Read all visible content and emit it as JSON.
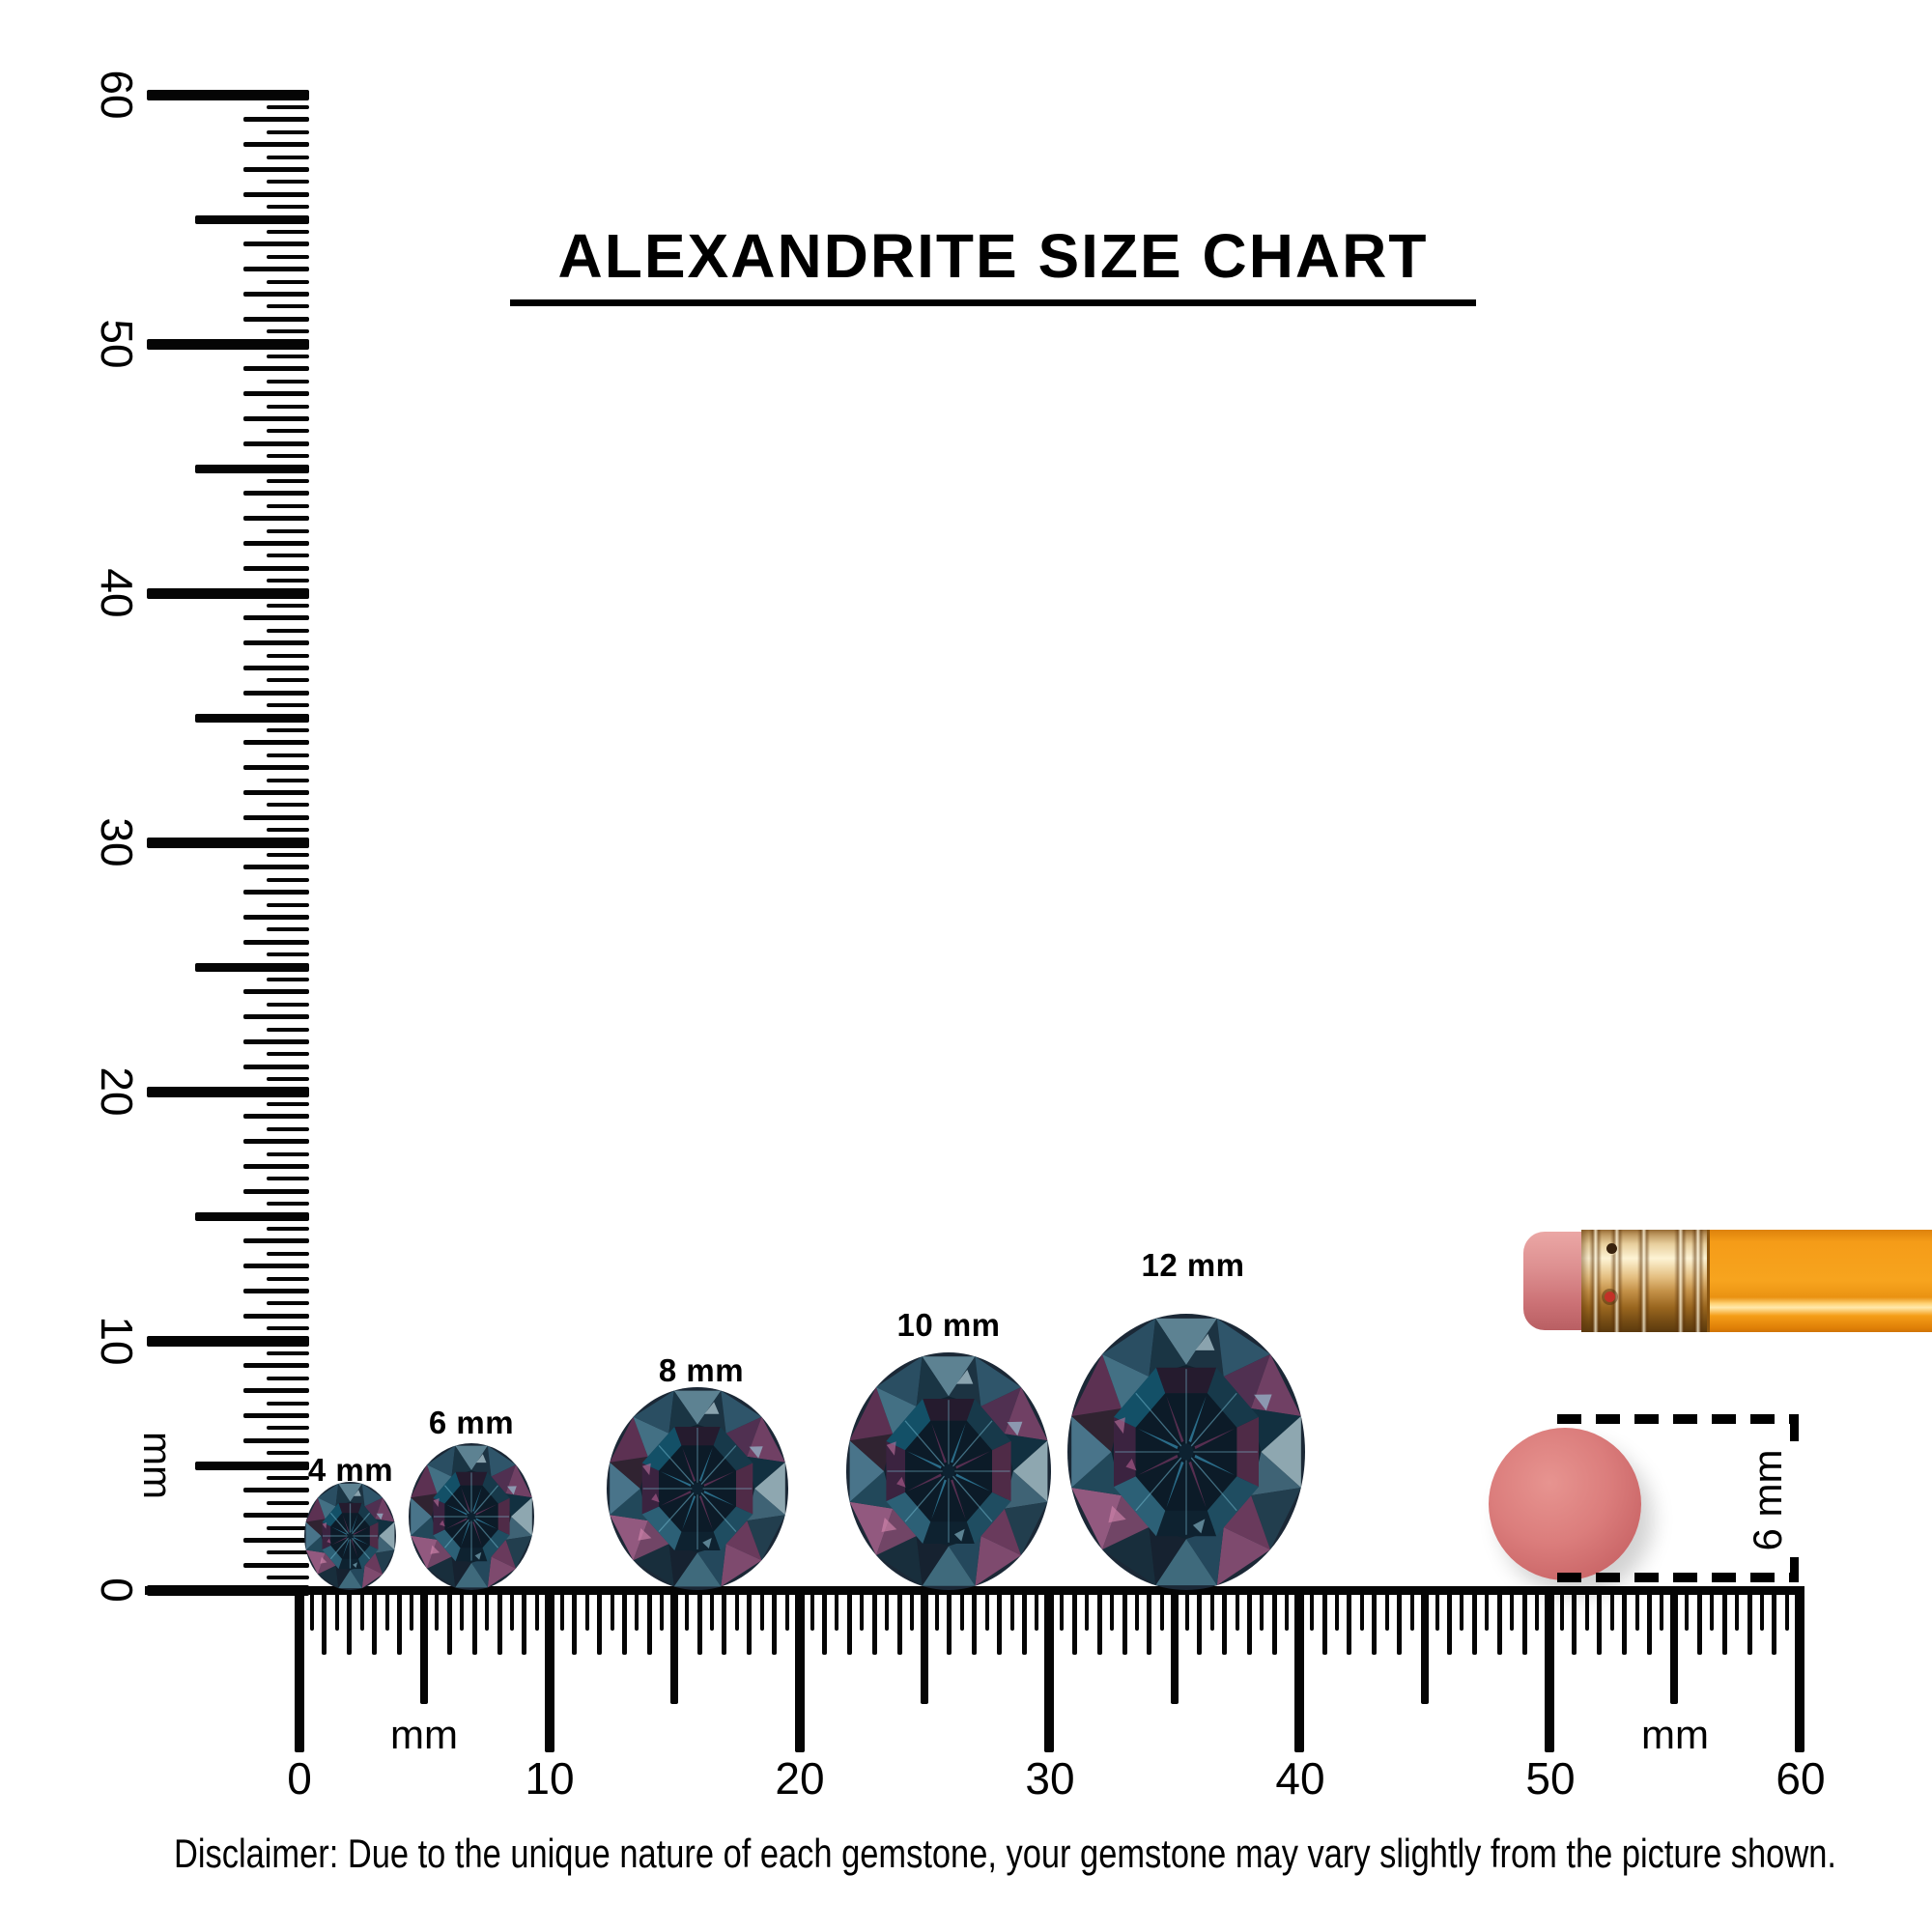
{
  "title": "ALEXANDRITE SIZE CHART",
  "left_ruler": {
    "unit": "mm",
    "labels": [
      "60",
      "50",
      "40",
      "30",
      "20",
      "10",
      "0"
    ]
  },
  "bottom_ruler": {
    "unit_left": "mm",
    "unit_right": "mm",
    "labels": [
      "0",
      "10",
      "20",
      "30",
      "40",
      "50",
      "60"
    ]
  },
  "gems": [
    {
      "label": "4 mm",
      "size_mm": 4
    },
    {
      "label": "6 mm",
      "size_mm": 6
    },
    {
      "label": "8 mm",
      "size_mm": 8
    },
    {
      "label": "10 mm",
      "size_mm": 10
    },
    {
      "label": "12 mm",
      "size_mm": 12
    }
  ],
  "eraser_callout": {
    "label": "6 mm"
  },
  "disclaimer": "Disclaimer: Due to the unique nature of each gemstone, your gemstone may vary slightly from the picture shown.",
  "colors": {
    "ink": "#000000",
    "pencil_orange": "#f6a21d",
    "ferrule_gold": "#d9b478",
    "eraser_pink": "#d4777b",
    "eraser_top_view": "#d26c6c",
    "gem_teal": "#2e6a82",
    "gem_purple": "#5e3154"
  }
}
